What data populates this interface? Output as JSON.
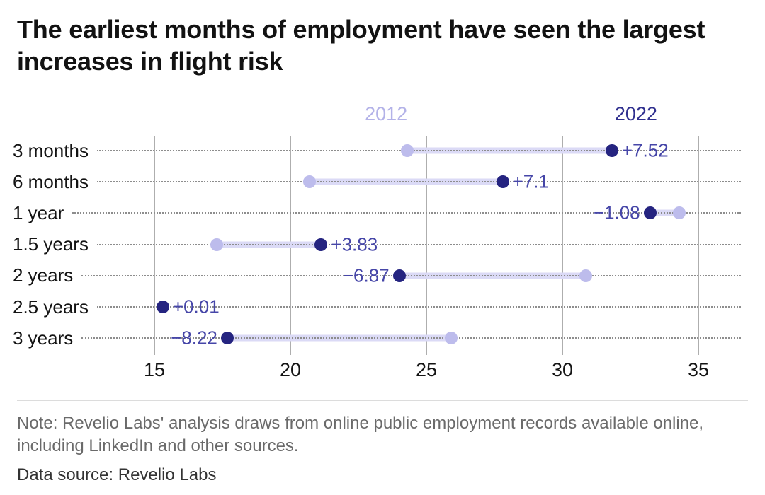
{
  "title": "The earliest months of employment have seen the largest increases in flight risk",
  "footer": {
    "note": "Note: Revelio Labs' analysis draws from online public employment records available online, including LinkedIn and other sources.",
    "source": "Data source: Revelio Labs"
  },
  "colors": {
    "series_2012": "#bdbcec",
    "series_2022": "#252480",
    "connector": "#dbdaf6",
    "delta_label": "#4646a8",
    "gridline": "#aeaeae",
    "leader_dots": "#8d8d8d",
    "note_text": "#6a6a6a"
  },
  "chart_data": {
    "type": "dumbbell",
    "title": "The earliest months of employment have seen the largest increases in flight risk",
    "categories": [
      "3 months",
      "6 months",
      "1 year",
      "1.5 years",
      "2 years",
      "2.5 years",
      "3 years"
    ],
    "series": [
      {
        "name": "2012",
        "values": [
          24.3,
          20.7,
          34.3,
          17.3,
          30.87,
          15.3,
          25.9
        ]
      },
      {
        "name": "2022",
        "values": [
          31.82,
          27.8,
          33.22,
          21.13,
          24.0,
          15.31,
          17.68
        ]
      }
    ],
    "deltas": [
      "+7.52",
      "+7.1",
      "−1.08",
      "+3.83",
      "−6.87",
      "+0.01",
      "−8.22"
    ],
    "xlim": [
      15,
      35
    ],
    "xticks": [
      15,
      20,
      25,
      30,
      35
    ],
    "legend_position": "above-first-row",
    "grid": "vertical-solid-plus-dotted-row-leaders"
  }
}
